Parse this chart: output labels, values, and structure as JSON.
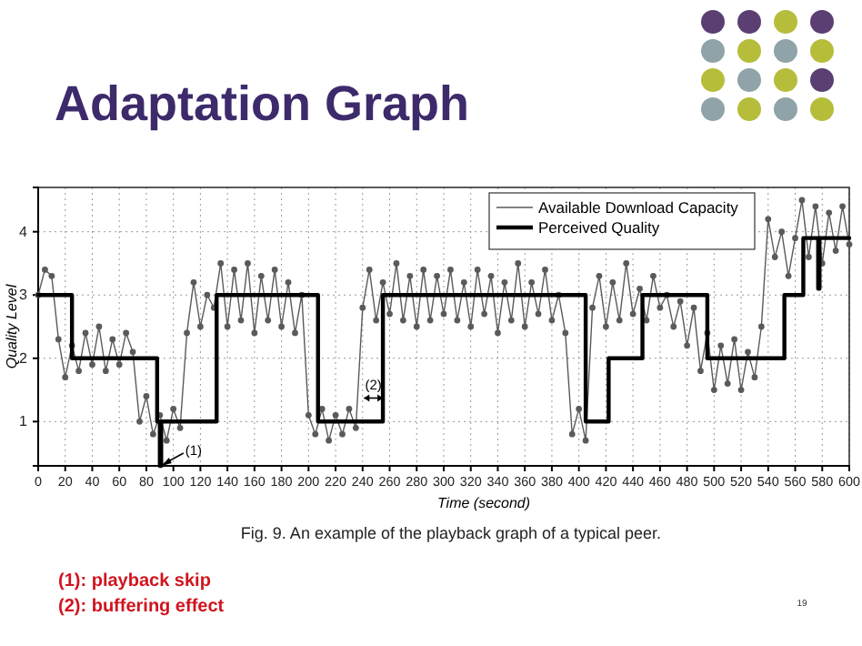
{
  "chart_data": {
    "type": "line",
    "title": "Adaptation Graph",
    "xlabel": "Time (second)",
    "ylabel": "Quality Level",
    "xlim": [
      0,
      600
    ],
    "xticks": [
      0,
      20,
      40,
      60,
      80,
      100,
      120,
      140,
      160,
      180,
      200,
      220,
      240,
      260,
      280,
      300,
      320,
      340,
      360,
      380,
      400,
      420,
      440,
      460,
      480,
      500,
      520,
      540,
      560,
      580,
      600
    ],
    "ylim": [
      0.3,
      4.7
    ],
    "yticks": [
      1,
      2,
      3,
      4
    ],
    "grid": true,
    "legend": "top right",
    "series": [
      {
        "name": "Available Download Capacity",
        "color": "#5a5a5a",
        "marker": "circle",
        "x": [
          0,
          5,
          10,
          15,
          20,
          25,
          30,
          35,
          40,
          45,
          50,
          55,
          60,
          65,
          70,
          75,
          80,
          85,
          90,
          95,
          100,
          105,
          110,
          115,
          120,
          125,
          130,
          135,
          140,
          145,
          150,
          155,
          160,
          165,
          170,
          175,
          180,
          185,
          190,
          195,
          200,
          205,
          210,
          215,
          220,
          225,
          230,
          235,
          240,
          245,
          250,
          255,
          260,
          265,
          270,
          275,
          280,
          285,
          290,
          295,
          300,
          305,
          310,
          315,
          320,
          325,
          330,
          335,
          340,
          345,
          350,
          355,
          360,
          365,
          370,
          375,
          380,
          385,
          390,
          395,
          400,
          405,
          410,
          415,
          420,
          425,
          430,
          435,
          440,
          445,
          450,
          455,
          460,
          465,
          470,
          475,
          480,
          485,
          490,
          495,
          500,
          505,
          510,
          515,
          520,
          525,
          530,
          535,
          540,
          545,
          550,
          555,
          560,
          565,
          570,
          575,
          580,
          585,
          590,
          595,
          600
        ],
        "values": [
          3.0,
          3.4,
          3.3,
          2.3,
          1.7,
          2.2,
          1.8,
          2.4,
          1.9,
          2.5,
          1.8,
          2.3,
          1.9,
          2.4,
          2.1,
          1.0,
          1.4,
          0.8,
          1.1,
          0.7,
          1.2,
          0.9,
          2.4,
          3.2,
          2.5,
          3.0,
          2.8,
          3.5,
          2.5,
          3.4,
          2.6,
          3.5,
          2.4,
          3.3,
          2.6,
          3.4,
          2.5,
          3.2,
          2.4,
          3.0,
          1.1,
          0.8,
          1.2,
          0.7,
          1.1,
          0.8,
          1.2,
          0.9,
          2.8,
          3.4,
          2.6,
          3.2,
          2.7,
          3.5,
          2.6,
          3.3,
          2.5,
          3.4,
          2.6,
          3.3,
          2.7,
          3.4,
          2.6,
          3.2,
          2.5,
          3.4,
          2.7,
          3.3,
          2.4,
          3.2,
          2.6,
          3.5,
          2.5,
          3.2,
          2.7,
          3.4,
          2.6,
          3.0,
          2.4,
          0.8,
          1.2,
          0.7,
          2.8,
          3.3,
          2.5,
          3.2,
          2.6,
          3.5,
          2.7,
          3.1,
          2.6,
          3.3,
          2.8,
          3.0,
          2.5,
          2.9,
          2.2,
          2.8,
          1.8,
          2.4,
          1.5,
          2.2,
          1.6,
          2.3,
          1.5,
          2.1,
          1.7,
          2.5,
          4.2,
          3.6,
          4.0,
          3.3,
          3.9,
          4.5,
          3.6,
          4.4,
          3.5,
          4.3,
          3.7,
          4.4,
          3.8
        ]
      },
      {
        "name": "Perceived Quality",
        "color": "#000000",
        "type": "step",
        "marker": "none",
        "x": [
          0,
          25,
          88,
          90,
          91,
          132,
          207,
          255,
          405,
          422,
          447,
          495,
          552,
          566,
          577,
          578,
          600
        ],
        "values": [
          3,
          2,
          1,
          0.3,
          1,
          3,
          1,
          3,
          1,
          2,
          3,
          2,
          3,
          3.9,
          3.1,
          3.9,
          3.9
        ]
      }
    ],
    "annotations": [
      {
        "text": "(1)",
        "x": 90,
        "y": 0.3
      },
      {
        "text": "(2)",
        "x": 248,
        "y": 1.4
      },
      "Fig. 9. An example of the playback graph of a typical peer.",
      "(1): playback skip",
      "(2): buffering effect",
      "19"
    ]
  }
}
